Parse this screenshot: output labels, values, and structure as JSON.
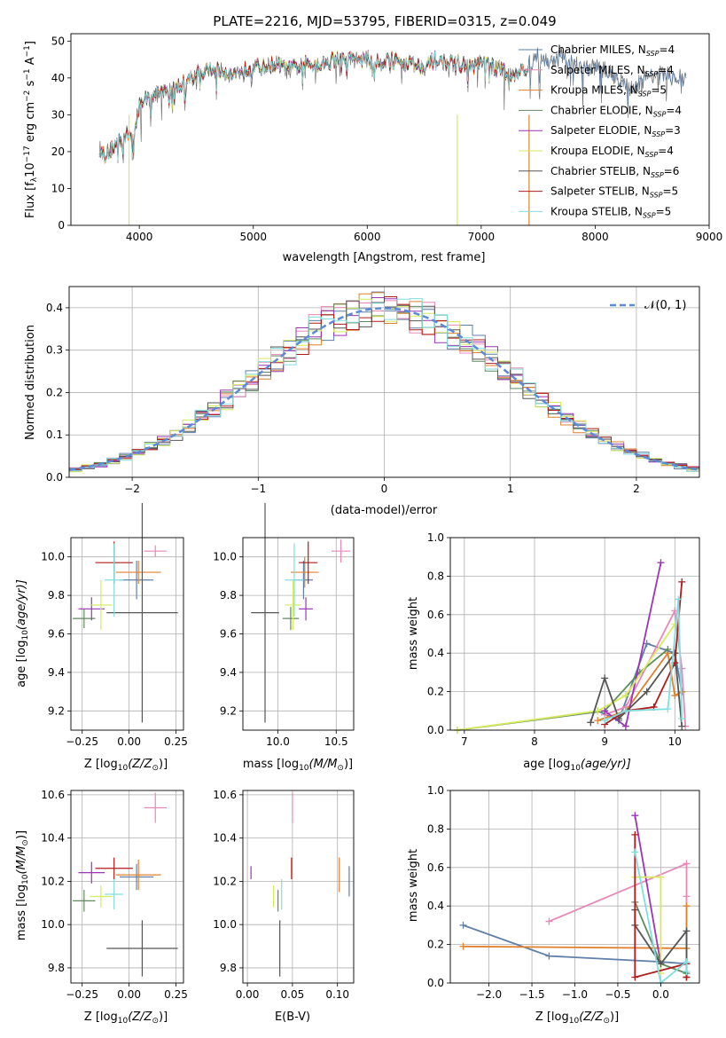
{
  "colors": {
    "chabrier_miles": "#5f7fa8",
    "salpeter_miles": "#e887b8",
    "kroupa_miles": "#e0812e",
    "chabrier_elodie": "#5f8a5f",
    "salpeter_elodie": "#9b35b5",
    "kroupa_elodie": "#d7ea5c",
    "chabrier_stelib": "#555555",
    "salpeter_stelib": "#b21b1b",
    "kroupa_stelib": "#80dede",
    "normal": "#5b8ad8"
  },
  "chart_data": [
    {
      "id": "spectrum",
      "type": "line",
      "title": "PLATE=2216, MJD=53795, FIBERID=0315, z=0.049",
      "xlabel": "wavelength [Angstrom, rest frame]",
      "ylabel_main": "Flux [f",
      "ylabel_sub": "λ",
      "ylabel_rest": "10",
      "ylabel_exp": "−17",
      "ylabel_units": " erg cm",
      "ylabel_exp2": "−2",
      "ylabel_s": " s",
      "ylabel_exp3": "−1",
      "ylabel_a": " A",
      "ylabel_exp4": "−1",
      "ylabel_close": "]",
      "xlim": [
        3400,
        9000
      ],
      "ylim": [
        0,
        52
      ],
      "xticks": [
        4000,
        5000,
        6000,
        7000,
        8000,
        9000
      ],
      "yticks": [
        0,
        10,
        20,
        30,
        40,
        50
      ],
      "continuum": [
        [
          3650,
          21
        ],
        [
          3700,
          19
        ],
        [
          3800,
          22
        ],
        [
          3900,
          25
        ],
        [
          3950,
          24
        ],
        [
          4000,
          33
        ],
        [
          4100,
          35
        ],
        [
          4200,
          36
        ],
        [
          4300,
          37
        ],
        [
          4400,
          39
        ],
        [
          4500,
          41
        ],
        [
          4600,
          42
        ],
        [
          4700,
          42
        ],
        [
          4800,
          41
        ],
        [
          4900,
          42
        ],
        [
          5000,
          43
        ],
        [
          5100,
          43
        ],
        [
          5200,
          44
        ],
        [
          5300,
          42
        ],
        [
          5400,
          43
        ],
        [
          5500,
          44
        ],
        [
          5600,
          44
        ],
        [
          5700,
          45
        ],
        [
          5800,
          45
        ],
        [
          5900,
          45
        ],
        [
          6000,
          45
        ],
        [
          6100,
          44
        ],
        [
          6200,
          45
        ],
        [
          6300,
          44
        ],
        [
          6400,
          44
        ],
        [
          6500,
          43
        ],
        [
          6600,
          45
        ],
        [
          6700,
          44
        ],
        [
          6800,
          44
        ],
        [
          6900,
          43
        ],
        [
          7000,
          44
        ],
        [
          7100,
          43
        ],
        [
          7200,
          42
        ],
        [
          7300,
          41
        ],
        [
          7400,
          43
        ],
        [
          7500,
          46
        ],
        [
          7600,
          44
        ],
        [
          7700,
          46
        ],
        [
          7800,
          44
        ],
        [
          7900,
          43
        ],
        [
          8000,
          43
        ],
        [
          8100,
          42
        ],
        [
          8200,
          40
        ],
        [
          8300,
          37
        ],
        [
          8400,
          39
        ],
        [
          8500,
          41
        ],
        [
          8600,
          41
        ],
        [
          8700,
          40
        ],
        [
          8800,
          40
        ]
      ],
      "legend": [
        {
          "label": "Chabrier MILES, N",
          "sub": "SSP",
          "tail": "=4",
          "key": "chabrier_miles"
        },
        {
          "label": "Salpeter MILES, N",
          "sub": "SSP",
          "tail": "=4",
          "key": "salpeter_miles"
        },
        {
          "label": "Kroupa MILES, N",
          "sub": "SSP",
          "tail": "=5",
          "key": "kroupa_miles"
        },
        {
          "label": "Chabrier ELODIE, N",
          "sub": "SSP",
          "tail": "=4",
          "key": "chabrier_elodie"
        },
        {
          "label": "Salpeter ELODIE, N",
          "sub": "SSP",
          "tail": "=3",
          "key": "salpeter_elodie"
        },
        {
          "label": "Kroupa ELODIE, N",
          "sub": "SSP",
          "tail": "=4",
          "key": "kroupa_elodie"
        },
        {
          "label": "Chabrier STELIB, N",
          "sub": "SSP",
          "tail": "=6",
          "key": "chabrier_stelib"
        },
        {
          "label": "Salpeter STELIB, N",
          "sub": "SSP",
          "tail": "=5",
          "key": "salpeter_stelib"
        },
        {
          "label": "Kroupa STELIB, N",
          "sub": "SSP",
          "tail": "=5",
          "key": "kroupa_stelib"
        }
      ]
    },
    {
      "id": "residuals",
      "type": "line",
      "xlabel": "(data-model)/error",
      "ylabel": "Normed distribution",
      "xlim": [
        -2.5,
        2.5
      ],
      "ylim": [
        0,
        0.45
      ],
      "xticks": [
        -2,
        -1,
        0,
        1,
        2
      ],
      "yticks": [
        0.0,
        0.1,
        0.2,
        0.3,
        0.4
      ],
      "legend_label": "𝒩(0, 1)",
      "grid": true
    },
    {
      "id": "age_vs_z",
      "type": "scatter",
      "xlabel": "Z [log",
      "xlabel_sub": "10",
      "xlabel_rest": "(Z/Z",
      "xlabel_sun": "⊙",
      "xlabel_close": ")]",
      "ylabel": "age  [log",
      "ylabel_sub": "10",
      "ylabel_rest": "(age/yr)]",
      "xlim": [
        -0.31,
        0.29
      ],
      "ylim": [
        9.1,
        10.1
      ],
      "xticks": [
        -0.25,
        0.0,
        0.25
      ],
      "xticklabels": [
        "−0.25",
        "0.00",
        "0.25"
      ],
      "yticks": [
        9.2,
        9.4,
        9.6,
        9.8,
        10.0
      ],
      "points": [
        {
          "key": "chabrier_miles",
          "x": 0.04,
          "y": 9.88,
          "xerr": 0.09,
          "yerr": 0.1
        },
        {
          "key": "salpeter_miles",
          "x": 0.14,
          "y": 10.03,
          "xerr": 0.06,
          "yerr": 0.03
        },
        {
          "key": "kroupa_miles",
          "x": 0.05,
          "y": 9.92,
          "xerr": 0.12,
          "yerr": 0.06
        },
        {
          "key": "chabrier_elodie",
          "x": -0.24,
          "y": 9.68,
          "xerr": 0.06,
          "yerr": 0.05
        },
        {
          "key": "salpeter_elodie",
          "x": -0.2,
          "y": 9.73,
          "xerr": 0.07,
          "yerr": 0.06
        },
        {
          "key": "kroupa_elodie",
          "x": -0.15,
          "y": 9.75,
          "xerr": 0.06,
          "yerr": 0.13
        },
        {
          "key": "chabrier_stelib",
          "x": 0.07,
          "y": 9.71,
          "xerr": 0.19,
          "yerr": 0.57
        },
        {
          "key": "salpeter_stelib",
          "x": -0.08,
          "y": 9.97,
          "xerr": 0.1,
          "yerr": 0.11
        },
        {
          "key": "kroupa_stelib",
          "x": -0.08,
          "y": 9.88,
          "xerr": 0.05,
          "yerr": 0.19
        }
      ]
    },
    {
      "id": "age_vs_mass",
      "type": "scatter",
      "xlabel": "mass [log",
      "xlabel_sub": "10",
      "xlabel_rest": "(M/M",
      "xlabel_sun": "⊙",
      "xlabel_close": ")]",
      "xlim": [
        9.7,
        10.65
      ],
      "ylim": [
        9.1,
        10.1
      ],
      "xticks": [
        10.0,
        10.5
      ],
      "xticklabels": [
        "10.0",
        "10.5"
      ],
      "yticks": [
        9.2,
        9.4,
        9.6,
        9.8,
        10.0
      ],
      "points": [
        {
          "key": "chabrier_miles",
          "x": 10.22,
          "y": 9.88,
          "xerr": 0.08,
          "yerr": 0.1
        },
        {
          "key": "salpeter_miles",
          "x": 10.54,
          "y": 10.03,
          "xerr": 0.08,
          "yerr": 0.06
        },
        {
          "key": "kroupa_miles",
          "x": 10.23,
          "y": 9.92,
          "xerr": 0.12,
          "yerr": 0.08
        },
        {
          "key": "chabrier_elodie",
          "x": 10.11,
          "y": 9.68,
          "xerr": 0.07,
          "yerr": 0.06
        },
        {
          "key": "salpeter_elodie",
          "x": 10.24,
          "y": 9.73,
          "xerr": 0.06,
          "yerr": 0.06
        },
        {
          "key": "kroupa_elodie",
          "x": 10.13,
          "y": 9.75,
          "xerr": 0.07,
          "yerr": 0.13
        },
        {
          "key": "chabrier_stelib",
          "x": 9.89,
          "y": 9.71,
          "xerr": 0.12,
          "yerr": 0.57
        },
        {
          "key": "salpeter_stelib",
          "x": 10.26,
          "y": 9.97,
          "xerr": 0.08,
          "yerr": 0.11
        },
        {
          "key": "kroupa_stelib",
          "x": 10.14,
          "y": 9.88,
          "xerr": 0.08,
          "yerr": 0.19
        }
      ]
    },
    {
      "id": "mw_vs_age",
      "type": "line",
      "xlabel": "age  [log",
      "xlabel_sub": "10",
      "xlabel_rest": "(age/yr)]",
      "ylabel": "mass weight",
      "xlim": [
        6.8,
        10.35
      ],
      "ylim": [
        0,
        1
      ],
      "xticks": [
        7,
        8,
        9,
        10
      ],
      "yticks": [
        0.0,
        0.2,
        0.4,
        0.6,
        0.8,
        1.0
      ],
      "series": [
        {
          "key": "chabrier_miles",
          "x": [
            8.9,
            9.2,
            9.6,
            10.0,
            10.1
          ],
          "y": [
            0.1,
            0.05,
            0.45,
            0.4,
            0.2
          ]
        },
        {
          "key": "salpeter_miles",
          "x": [
            9.0,
            9.3,
            10.0,
            10.1,
            10.15
          ],
          "y": [
            0.08,
            0.12,
            0.62,
            0.32,
            0.02
          ]
        },
        {
          "key": "kroupa_miles",
          "x": [
            8.9,
            9.3,
            9.9,
            10.0,
            10.1
          ],
          "y": [
            0.05,
            0.1,
            0.4,
            0.18,
            0.2
          ]
        },
        {
          "key": "chabrier_elodie",
          "x": [
            6.9,
            9.0,
            9.5,
            9.9
          ],
          "y": [
            0.0,
            0.1,
            0.3,
            0.42
          ]
        },
        {
          "key": "salpeter_elodie",
          "x": [
            9.0,
            9.3,
            9.8
          ],
          "y": [
            0.1,
            0.02,
            0.87
          ]
        },
        {
          "key": "kroupa_elodie",
          "x": [
            6.9,
            8.9,
            9.3,
            10.0
          ],
          "y": [
            0.0,
            0.1,
            0.18,
            0.55
          ]
        },
        {
          "key": "chabrier_stelib",
          "x": [
            8.8,
            9.0,
            9.2,
            9.6,
            10.0,
            10.1
          ],
          "y": [
            0.04,
            0.27,
            0.06,
            0.2,
            0.4,
            0.02
          ]
        },
        {
          "key": "salpeter_stelib",
          "x": [
            9.0,
            9.3,
            9.7,
            10.0,
            10.1
          ],
          "y": [
            0.03,
            0.1,
            0.12,
            0.35,
            0.77
          ]
        },
        {
          "key": "kroupa_stelib",
          "x": [
            9.0,
            9.3,
            9.9,
            10.05,
            10.1
          ],
          "y": [
            0.05,
            0.1,
            0.11,
            0.68,
            0.06
          ]
        }
      ]
    },
    {
      "id": "mass_vs_z",
      "type": "scatter",
      "ylabel": "mass [log",
      "ylabel_sub": "10",
      "ylabel_rest": "(M/M",
      "ylabel_sun": "⊙",
      "ylabel_close": ")]",
      "xlim": [
        -0.31,
        0.29
      ],
      "ylim": [
        9.73,
        10.62
      ],
      "xticks": [
        -0.25,
        0.0,
        0.25
      ],
      "xticklabels": [
        "−0.25",
        "0.00",
        "0.25"
      ],
      "yticks": [
        9.8,
        10.0,
        10.2,
        10.4,
        10.6
      ],
      "points": [
        {
          "key": "chabrier_miles",
          "x": 0.04,
          "y": 10.22,
          "xerr": 0.09,
          "yerr": 0.06
        },
        {
          "key": "salpeter_miles",
          "x": 0.14,
          "y": 10.54,
          "xerr": 0.06,
          "yerr": 0.07
        },
        {
          "key": "kroupa_miles",
          "x": 0.05,
          "y": 10.23,
          "xerr": 0.12,
          "yerr": 0.07
        },
        {
          "key": "chabrier_elodie",
          "x": -0.24,
          "y": 10.11,
          "xerr": 0.06,
          "yerr": 0.05
        },
        {
          "key": "salpeter_elodie",
          "x": -0.2,
          "y": 10.24,
          "xerr": 0.07,
          "yerr": 0.05
        },
        {
          "key": "kroupa_elodie",
          "x": -0.15,
          "y": 10.13,
          "xerr": 0.06,
          "yerr": 0.05
        },
        {
          "key": "chabrier_stelib",
          "x": 0.07,
          "y": 9.89,
          "xerr": 0.19,
          "yerr": 0.13
        },
        {
          "key": "salpeter_stelib",
          "x": -0.08,
          "y": 10.26,
          "xerr": 0.1,
          "yerr": 0.05
        },
        {
          "key": "kroupa_stelib",
          "x": -0.08,
          "y": 10.14,
          "xerr": 0.05,
          "yerr": 0.07
        }
      ]
    },
    {
      "id": "mass_vs_ebv",
      "type": "scatter",
      "xlabel": "E(B-V)",
      "xlim": [
        -0.005,
        0.118
      ],
      "ylim": [
        9.73,
        10.62
      ],
      "xticks": [
        0.0,
        0.05,
        0.1
      ],
      "xticklabels": [
        "0.00",
        "0.05",
        "0.10"
      ],
      "yticks": [
        9.8,
        10.0,
        10.2,
        10.4,
        10.6
      ],
      "points": [
        {
          "key": "chabrier_miles",
          "x": 0.113,
          "y": 10.2,
          "yerr": 0.07
        },
        {
          "key": "salpeter_miles",
          "x": 0.05,
          "y": 10.54,
          "yerr": 0.07
        },
        {
          "key": "kroupa_miles",
          "x": 0.102,
          "y": 10.23,
          "yerr": 0.08
        },
        {
          "key": "chabrier_elodie",
          "x": 0.034,
          "y": 10.11,
          "yerr": 0.05
        },
        {
          "key": "salpeter_elodie",
          "x": 0.004,
          "y": 10.24,
          "yerr": 0.03
        },
        {
          "key": "kroupa_elodie",
          "x": 0.029,
          "y": 10.13,
          "yerr": 0.05
        },
        {
          "key": "chabrier_stelib",
          "x": 0.036,
          "y": 9.89,
          "yerr": 0.13
        },
        {
          "key": "salpeter_stelib",
          "x": 0.049,
          "y": 10.26,
          "yerr": 0.05
        },
        {
          "key": "kroupa_stelib",
          "x": 0.038,
          "y": 10.14,
          "yerr": 0.07
        }
      ]
    },
    {
      "id": "mw_vs_z",
      "type": "line",
      "xlabel": "Z [log",
      "xlabel_sub": "10",
      "xlabel_rest": "(Z/Z",
      "xlabel_sun": "⊙",
      "xlabel_close": ")]",
      "ylabel": "mass weight",
      "xlim": [
        -2.45,
        0.45
      ],
      "ylim": [
        0,
        1
      ],
      "xticks": [
        -2.0,
        -1.5,
        -1.0,
        -0.5,
        0.0
      ],
      "xticklabels": [
        "−2.0",
        "−1.5",
        "−1.0",
        "−0.5",
        "0.0"
      ],
      "yticks": [
        0.0,
        0.2,
        0.4,
        0.6,
        0.8,
        1.0
      ],
      "series": [
        {
          "key": "chabrier_miles",
          "x": [
            -2.3,
            -1.3,
            0.0,
            0.3
          ],
          "y": [
            0.3,
            0.14,
            0.11,
            0.1
          ]
        },
        {
          "key": "salpeter_miles",
          "x": [
            -1.3,
            0.3,
            0.3,
            0.3
          ],
          "y": [
            0.32,
            0.62,
            0.45,
            0.03
          ]
        },
        {
          "key": "kroupa_miles",
          "x": [
            -2.3,
            0.3,
            0.3,
            0.3
          ],
          "y": [
            0.19,
            0.18,
            0.4,
            0.03
          ]
        },
        {
          "key": "chabrier_elodie",
          "x": [
            -0.3,
            0.0,
            0.3
          ],
          "y": [
            0.42,
            0.1,
            0.05
          ]
        },
        {
          "key": "salpeter_elodie",
          "x": [
            -0.3,
            0.0
          ],
          "y": [
            0.87,
            0.1
          ]
        },
        {
          "key": "kroupa_elodie",
          "x": [
            -0.3,
            0.0,
            0.0
          ],
          "y": [
            0.55,
            0.55,
            0.05
          ]
        },
        {
          "key": "chabrier_stelib",
          "x": [
            -0.3,
            -0.3,
            0.0,
            0.3,
            0.3
          ],
          "y": [
            0.38,
            0.3,
            0.1,
            0.27,
            0.03
          ]
        },
        {
          "key": "salpeter_stelib",
          "x": [
            -0.3,
            -0.3,
            0.3,
            0.3
          ],
          "y": [
            0.77,
            0.03,
            0.1,
            0.03
          ]
        },
        {
          "key": "kroupa_stelib",
          "x": [
            -0.3,
            0.0,
            0.3,
            0.3
          ],
          "y": [
            0.68,
            0.0,
            0.11,
            0.06
          ]
        }
      ]
    }
  ]
}
